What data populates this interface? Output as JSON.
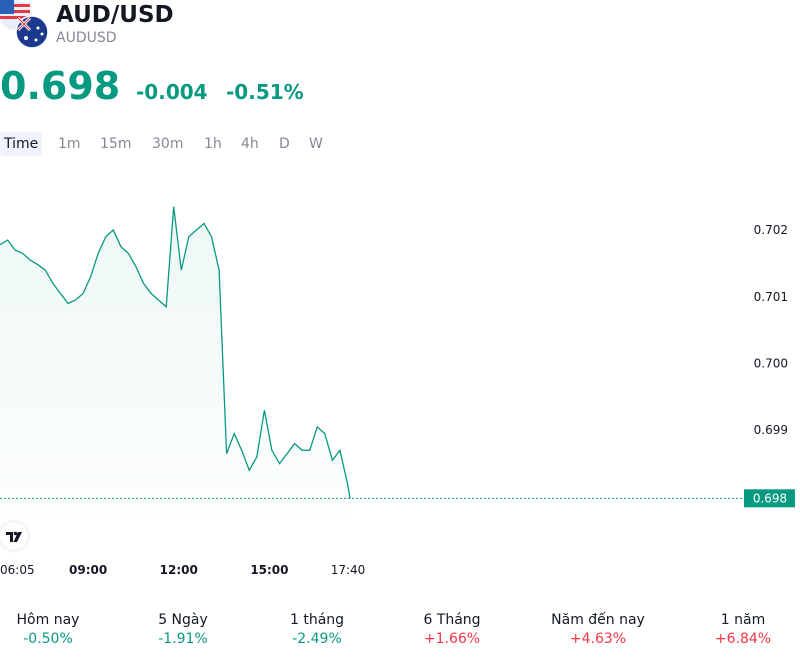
{
  "header": {
    "symbol": "AUD/USD",
    "ticker": "AUDUSD",
    "price": "0.698",
    "change_abs": "-0.004",
    "change_pct": "-0.51%"
  },
  "timeframes": [
    "Time",
    "1m",
    "15m",
    "30m",
    "1h",
    "4h",
    "D",
    "W"
  ],
  "active_timeframe": "Time",
  "colors": {
    "accent": "#089981",
    "negative": "#f23645",
    "text": "#131722",
    "muted": "#868993"
  },
  "chart_data": {
    "type": "area",
    "x_ticks": [
      "06:05",
      "09:00",
      "12:00",
      "15:00",
      "17:40"
    ],
    "y_ticks": [
      "0.702",
      "0.701",
      "0.700",
      "0.699"
    ],
    "last_price_label": "0.698",
    "ylim": [
      0.6977,
      0.7026
    ],
    "series": [
      {
        "x": [
          "06:05",
          "06:20",
          "06:35",
          "06:50",
          "07:05",
          "07:20",
          "07:35",
          "07:50",
          "08:05",
          "08:20",
          "08:35",
          "08:50",
          "09:05",
          "09:20",
          "09:35",
          "09:50",
          "10:05",
          "10:20",
          "10:35",
          "10:50",
          "11:05",
          "11:20",
          "11:35",
          "11:50",
          "12:05",
          "12:20",
          "12:35",
          "12:50",
          "13:05",
          "13:20",
          "13:35",
          "13:50",
          "14:05",
          "14:20",
          "14:35",
          "14:50",
          "15:05",
          "15:20",
          "15:35",
          "15:50",
          "16:05",
          "16:20",
          "16:35",
          "16:50",
          "17:05",
          "17:20",
          "17:35",
          "17:40"
        ],
        "y": [
          0.70178,
          0.70185,
          0.7017,
          0.70165,
          0.70155,
          0.70148,
          0.7014,
          0.7012,
          0.70105,
          0.7009,
          0.70095,
          0.70105,
          0.7013,
          0.70165,
          0.7019,
          0.702,
          0.70175,
          0.70165,
          0.70145,
          0.7012,
          0.70105,
          0.70095,
          0.70085,
          0.70235,
          0.7014,
          0.7019,
          0.702,
          0.7021,
          0.7019,
          0.7014,
          0.69865,
          0.69895,
          0.6987,
          0.6984,
          0.6986,
          0.6993,
          0.6987,
          0.6985,
          0.69865,
          0.6988,
          0.6987,
          0.6987,
          0.69905,
          0.69895,
          0.69855,
          0.6987,
          0.6982,
          0.69798
        ]
      }
    ]
  },
  "returns": [
    {
      "label": "Hôm nay",
      "value": "-0.50%",
      "sign": "neg"
    },
    {
      "label": "5 Ngày",
      "value": "-1.91%",
      "sign": "neg"
    },
    {
      "label": "1 tháng",
      "value": "-2.49%",
      "sign": "neg"
    },
    {
      "label": "6 Tháng",
      "value": "+1.66%",
      "sign": "pos"
    },
    {
      "label": "Năm đến nay",
      "value": "+4.63%",
      "sign": "pos"
    },
    {
      "label": "1 năm",
      "value": "+6.84%",
      "sign": "pos"
    }
  ]
}
